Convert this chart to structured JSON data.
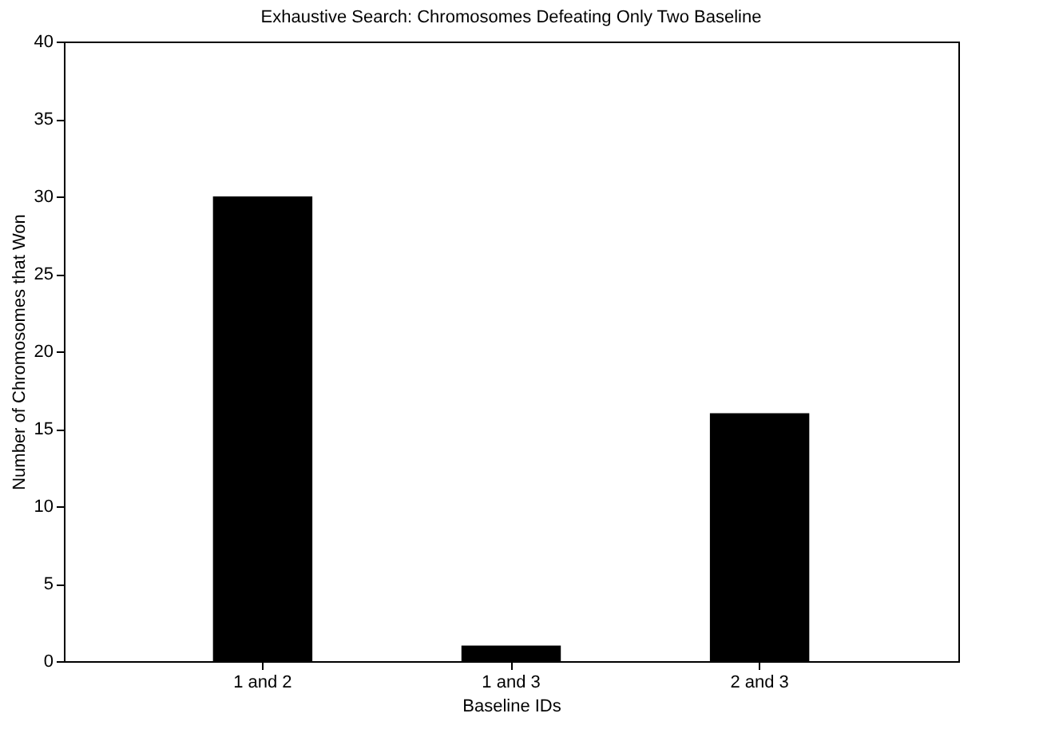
{
  "chart_data": {
    "type": "bar",
    "title": "Exhaustive Search: Chromosomes Defeating Only Two Baseline",
    "xlabel": "Baseline IDs",
    "ylabel": "Number of Chromosomes that Won",
    "categories": [
      "1 and 2",
      "1 and 3",
      "2 and 3"
    ],
    "series": [
      {
        "color": "#000000",
        "values": [
          30,
          1,
          16
        ]
      }
    ],
    "ylim": [
      0,
      40
    ],
    "yticks": [
      0,
      5,
      10,
      15,
      20,
      25,
      30,
      35,
      40
    ],
    "grid": false,
    "legend": false
  }
}
